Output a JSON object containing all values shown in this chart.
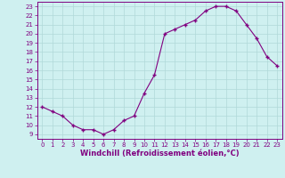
{
  "x": [
    0,
    1,
    2,
    3,
    4,
    5,
    6,
    7,
    8,
    9,
    10,
    11,
    12,
    13,
    14,
    15,
    16,
    17,
    18,
    19,
    20,
    21,
    22,
    23
  ],
  "y": [
    12,
    11.5,
    11,
    10,
    9.5,
    9.5,
    9,
    9.5,
    10.5,
    11,
    13.5,
    15.5,
    20,
    20.5,
    21,
    21.5,
    22.5,
    23,
    23,
    22.5,
    21,
    19.5,
    17.5,
    16.5
  ],
  "line_color": "#800080",
  "marker": "+",
  "marker_size": 3.5,
  "marker_lw": 1.0,
  "bg_color": "#cff0f0",
  "grid_color": "#b0d8d8",
  "xlabel": "Windchill (Refroidissement éolien,°C)",
  "xlabel_color": "#800080",
  "ylabel_ticks": [
    9,
    10,
    11,
    12,
    13,
    14,
    15,
    16,
    17,
    18,
    19,
    20,
    21,
    22,
    23
  ],
  "xtick_labels": [
    "0",
    "1",
    "2",
    "3",
    "4",
    "5",
    "6",
    "7",
    "8",
    "9",
    "10",
    "11",
    "12",
    "13",
    "14",
    "15",
    "16",
    "17",
    "18",
    "19",
    "20",
    "21",
    "22",
    "23"
  ],
  "xlim": [
    -0.5,
    23.5
  ],
  "ylim": [
    8.5,
    23.5
  ],
  "tick_label_color": "#800080",
  "axis_color": "#800080",
  "tick_fontsize": 5,
  "xlabel_fontsize": 6
}
